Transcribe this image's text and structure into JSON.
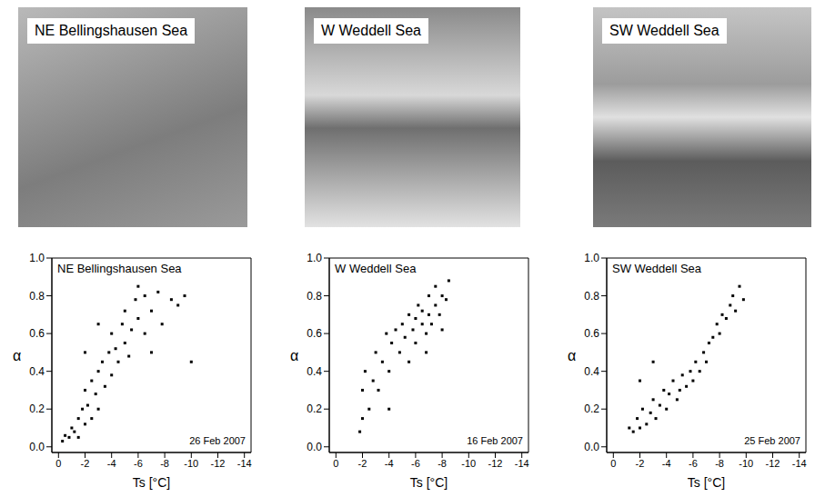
{
  "photos": [
    {
      "label": "NE Bellingshausen Sea"
    },
    {
      "label": "W Weddell Sea"
    },
    {
      "label": "SW Weddell Sea"
    }
  ],
  "chart_data": [
    {
      "type": "scatter",
      "title": "NE Bellingshausen Sea",
      "annotations": [
        "26 Feb 2007"
      ],
      "x_label": "Ts [°C]",
      "y_label": "α",
      "color": "#000000",
      "marker": "square",
      "xlim": [
        0.5,
        -14.5
      ],
      "xticks": [
        0,
        -2,
        -4,
        -6,
        -8,
        -10,
        -12,
        -14
      ],
      "ylim": [
        -0.03,
        1.0
      ],
      "yticks": [
        {
          "value": 0,
          "label": "0.0"
        },
        {
          "value": 0.2,
          "label": "0.2"
        },
        {
          "value": 0.4,
          "label": "0.4"
        },
        {
          "value": 0.6,
          "label": "0.6"
        },
        {
          "value": 0.8,
          "label": "0.8"
        },
        {
          "value": 1,
          "label": "1.0"
        }
      ],
      "x": [
        -0.3,
        -0.5,
        -0.8,
        -1,
        -1.2,
        -1.5,
        -1.5,
        -1.8,
        -2,
        -2,
        -2.2,
        -2.5,
        -2.5,
        -2.8,
        -3,
        -3,
        -3.3,
        -3.5,
        -3.8,
        -4,
        -4,
        -4.3,
        -4.5,
        -4.8,
        -5,
        -5,
        -5.3,
        -5.5,
        -5.8,
        -6,
        -6,
        -6.5,
        -6.5,
        -7,
        -7,
        -7.5,
        -7.8,
        -8.5,
        -9,
        -9.5,
        -10,
        -3,
        -2
      ],
      "values": [
        0.03,
        0.06,
        0.05,
        0.1,
        0.08,
        0.15,
        0.05,
        0.2,
        0.12,
        0.3,
        0.22,
        0.35,
        0.15,
        0.28,
        0.4,
        0.2,
        0.45,
        0.32,
        0.5,
        0.38,
        0.6,
        0.52,
        0.45,
        0.65,
        0.55,
        0.72,
        0.48,
        0.62,
        0.78,
        0.68,
        0.85,
        0.6,
        0.8,
        0.72,
        0.5,
        0.82,
        0.65,
        0.78,
        0.75,
        0.8,
        0.45,
        0.65,
        0.5
      ]
    },
    {
      "type": "scatter",
      "title": "W Weddell Sea",
      "annotations": [
        "16 Feb 2007"
      ],
      "x_label": "Ts [°C]",
      "y_label": "α",
      "color": "#000000",
      "marker": "square",
      "xlim": [
        0.5,
        -14.5
      ],
      "xticks": [
        0,
        -2,
        -4,
        -6,
        -8,
        -10,
        -12,
        -14
      ],
      "ylim": [
        -0.03,
        1.0
      ],
      "yticks": [
        {
          "value": 0,
          "label": "0.0"
        },
        {
          "value": 0.2,
          "label": "0.2"
        },
        {
          "value": 0.4,
          "label": "0.4"
        },
        {
          "value": 0.6,
          "label": "0.6"
        },
        {
          "value": 0.8,
          "label": "0.8"
        },
        {
          "value": 1,
          "label": "1.0"
        }
      ],
      "x": [
        -1.8,
        -2,
        -2,
        -2.2,
        -2.5,
        -2.8,
        -3,
        -3.2,
        -3.5,
        -3.8,
        -4,
        -4.2,
        -4.5,
        -4.8,
        -5,
        -5.2,
        -5.5,
        -5.5,
        -5.8,
        -6,
        -6,
        -6.2,
        -6.5,
        -6.5,
        -6.8,
        -7,
        -7,
        -7.2,
        -7.5,
        -7.5,
        -7.8,
        -8,
        -8,
        -8.3,
        -8.5,
        -6.8,
        -4
      ],
      "values": [
        0.08,
        0.15,
        0.3,
        0.4,
        0.2,
        0.35,
        0.5,
        0.3,
        0.45,
        0.6,
        0.4,
        0.55,
        0.62,
        0.5,
        0.65,
        0.58,
        0.7,
        0.45,
        0.62,
        0.68,
        0.55,
        0.75,
        0.65,
        0.72,
        0.6,
        0.7,
        0.8,
        0.65,
        0.75,
        0.85,
        0.7,
        0.8,
        0.62,
        0.78,
        0.88,
        0.5,
        0.2
      ]
    },
    {
      "type": "scatter",
      "title": "SW Weddell Sea",
      "annotations": [
        "25 Feb 2007"
      ],
      "x_label": "Ts [°C]",
      "y_label": "α",
      "color": "#000000",
      "marker": "square",
      "xlim": [
        0.5,
        -14.5
      ],
      "xticks": [
        0,
        -2,
        -4,
        -6,
        -8,
        -10,
        -12,
        -14
      ],
      "ylim": [
        -0.03,
        1.0
      ],
      "yticks": [
        {
          "value": 0,
          "label": "0.0"
        },
        {
          "value": 0.2,
          "label": "0.2"
        },
        {
          "value": 0.4,
          "label": "0.4"
        },
        {
          "value": 0.6,
          "label": "0.6"
        },
        {
          "value": 0.8,
          "label": "0.8"
        },
        {
          "value": 1,
          "label": "1.0"
        }
      ],
      "x": [
        -1.2,
        -1.5,
        -1.8,
        -2,
        -2.2,
        -2.5,
        -2.8,
        -3,
        -3.2,
        -3.5,
        -3.8,
        -4,
        -4.2,
        -4.5,
        -4.8,
        -5,
        -5.2,
        -5.5,
        -5.8,
        -6,
        -6.2,
        -6.5,
        -6.8,
        -7,
        -7.2,
        -7.5,
        -7.8,
        -8,
        -8.2,
        -8.5,
        -8.8,
        -9,
        -9.2,
        -9.5,
        -9.8,
        -3,
        -2
      ],
      "values": [
        0.1,
        0.08,
        0.15,
        0.1,
        0.2,
        0.12,
        0.18,
        0.25,
        0.15,
        0.22,
        0.3,
        0.2,
        0.28,
        0.35,
        0.25,
        0.3,
        0.38,
        0.32,
        0.4,
        0.35,
        0.45,
        0.4,
        0.5,
        0.45,
        0.55,
        0.58,
        0.65,
        0.6,
        0.7,
        0.68,
        0.75,
        0.8,
        0.72,
        0.85,
        0.78,
        0.45,
        0.35
      ]
    }
  ]
}
